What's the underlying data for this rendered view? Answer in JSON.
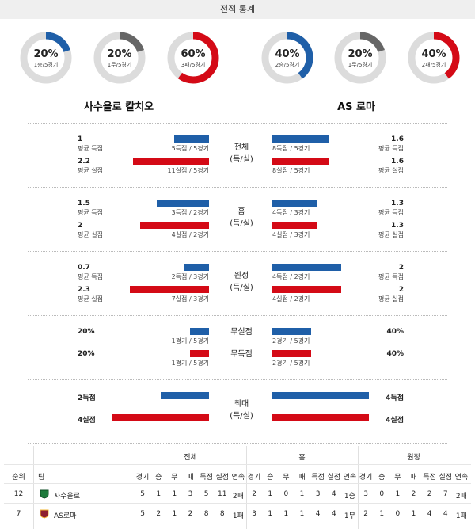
{
  "header": {
    "title": "전적 통계"
  },
  "donuts": [
    {
      "pct": "20%",
      "sub": "1승/5경기",
      "fraction": 0.2,
      "color": "#1f5fa8"
    },
    {
      "pct": "20%",
      "sub": "1무/5경기",
      "fraction": 0.2,
      "color": "#666666"
    },
    {
      "pct": "60%",
      "sub": "3패/5경기",
      "fraction": 0.6,
      "color": "#d40a16"
    },
    {
      "pct": "40%",
      "sub": "2승/5경기",
      "fraction": 0.4,
      "color": "#1f5fa8"
    },
    {
      "pct": "20%",
      "sub": "1무/5경기",
      "fraction": 0.2,
      "color": "#666666"
    },
    {
      "pct": "40%",
      "sub": "2패/5경기",
      "fraction": 0.4,
      "color": "#d40a16"
    }
  ],
  "teams": {
    "home": "사수올로 칼치오",
    "away": "AS 로마"
  },
  "sections": [
    {
      "label1": "전체",
      "label2": "(득/실)",
      "rows": [
        {
          "lval": "1",
          "llab": "평균 득점",
          "lsub": "5득점 / 5경기",
          "lfrac": 0.36,
          "rval": "1.6",
          "rlab": "평균 득점",
          "rsub": "8득점 / 5경기",
          "rfrac": 0.58,
          "lcolor": "blue",
          "rcolor": "blue"
        },
        {
          "lval": "2.2",
          "llab": "평균 실점",
          "lsub": "11실점 / 5경기",
          "lfrac": 0.79,
          "rval": "1.6",
          "rlab": "평균 실점",
          "rsub": "8실점 / 5경기",
          "rfrac": 0.58,
          "lcolor": "red",
          "rcolor": "red"
        }
      ]
    },
    {
      "label1": "홈",
      "label2": "(득/실)",
      "rows": [
        {
          "lval": "1.5",
          "llab": "평균 득점",
          "lsub": "3득점 / 2경기",
          "lfrac": 0.54,
          "rval": "1.3",
          "rlab": "평균 득점",
          "rsub": "4득점 / 3경기",
          "rfrac": 0.46,
          "lcolor": "blue",
          "rcolor": "blue"
        },
        {
          "lval": "2",
          "llab": "평균 실점",
          "lsub": "4실점 / 2경기",
          "lfrac": 0.71,
          "rval": "1.3",
          "rlab": "평균 실점",
          "rsub": "4실점 / 3경기",
          "rfrac": 0.46,
          "lcolor": "red",
          "rcolor": "red"
        }
      ]
    },
    {
      "label1": "원정",
      "label2": "(득/실)",
      "rows": [
        {
          "lval": "0.7",
          "llab": "평균 득점",
          "lsub": "2득점 / 3경기",
          "lfrac": 0.25,
          "rval": "2",
          "rlab": "평균 득점",
          "rsub": "4득점 / 2경기",
          "rfrac": 0.71,
          "lcolor": "blue",
          "rcolor": "blue"
        },
        {
          "lval": "2.3",
          "llab": "평균 실점",
          "lsub": "7실점 / 3경기",
          "lfrac": 0.82,
          "rval": "2",
          "rlab": "평균 실점",
          "rsub": "4실점 / 2경기",
          "rfrac": 0.71,
          "lcolor": "red",
          "rcolor": "red"
        }
      ]
    },
    {
      "label1": "",
      "label2": "",
      "rows": [
        {
          "lval": "20%",
          "llab": "",
          "lsub": "1경기 / 5경기",
          "lfrac": 0.2,
          "rval": "40%",
          "rlab": "",
          "rsub": "2경기 / 5경기",
          "rfrac": 0.4,
          "lcolor": "blue",
          "rcolor": "blue",
          "mid": "무실점"
        },
        {
          "lval": "20%",
          "llab": "",
          "lsub": "1경기 / 5경기",
          "lfrac": 0.2,
          "rval": "40%",
          "rlab": "",
          "rsub": "2경기 / 5경기",
          "rfrac": 0.4,
          "lcolor": "red",
          "rcolor": "red",
          "mid": "무득점"
        }
      ]
    },
    {
      "label1": "최대",
      "label2": "(득/실)",
      "rows": [
        {
          "lval": "2득점",
          "llab": "",
          "lsub": "",
          "lfrac": 0.5,
          "rval": "4득점",
          "rlab": "",
          "rsub": "",
          "rfrac": 1.0,
          "lcolor": "blue",
          "rcolor": "blue"
        },
        {
          "lval": "4실점",
          "llab": "",
          "lsub": "",
          "lfrac": 1.0,
          "rval": "4실점",
          "rlab": "",
          "rsub": "",
          "rfrac": 1.0,
          "lcolor": "red",
          "rcolor": "red"
        }
      ]
    }
  ],
  "table": {
    "groups": [
      "전체",
      "홈",
      "원정"
    ],
    "rank_header": "순위",
    "team_header": "팀",
    "subheaders": [
      "경기",
      "승",
      "무",
      "패",
      "득점",
      "실점",
      "연속"
    ],
    "rows": [
      {
        "rank": "12",
        "team": "사수올로",
        "icon": "sassuolo-logo-icon",
        "all": [
          "5",
          "1",
          "1",
          "3",
          "5",
          "11",
          "2패"
        ],
        "home": [
          "2",
          "1",
          "0",
          "1",
          "3",
          "4",
          "1승"
        ],
        "away": [
          "3",
          "0",
          "1",
          "2",
          "2",
          "7",
          "2패"
        ]
      },
      {
        "rank": "7",
        "team": "AS로마",
        "icon": "roma-logo-icon",
        "all": [
          "5",
          "2",
          "1",
          "2",
          "8",
          "8",
          "1패"
        ],
        "home": [
          "3",
          "1",
          "1",
          "1",
          "4",
          "4",
          "1무"
        ],
        "away": [
          "2",
          "1",
          "0",
          "1",
          "4",
          "4",
          "1패"
        ]
      }
    ]
  }
}
